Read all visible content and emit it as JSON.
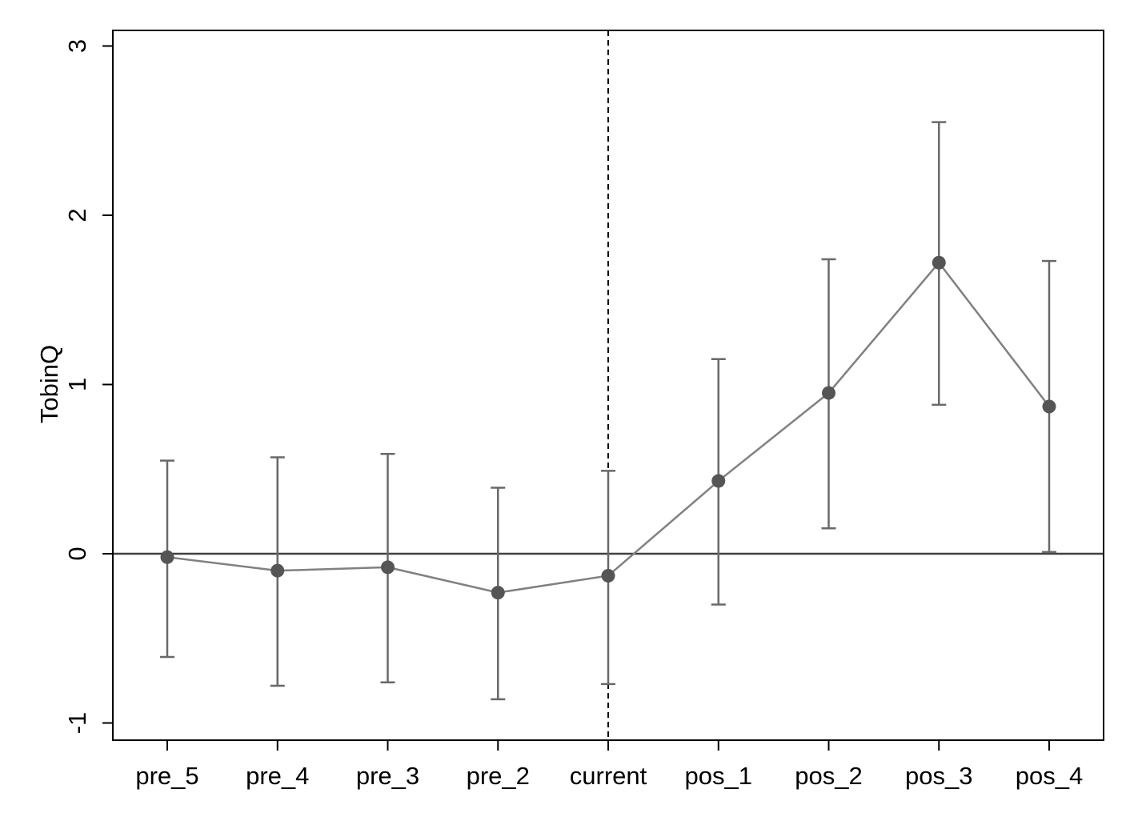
{
  "chart_data": {
    "type": "scatter",
    "xlabel": "",
    "ylabel": "TobinQ",
    "categories": [
      "pre_5",
      "pre_4",
      "pre_3",
      "pre_2",
      "current",
      "pos_1",
      "pos_2",
      "pos_3",
      "pos_4"
    ],
    "series": [
      {
        "values": [
          -0.02,
          -0.1,
          -0.08,
          -0.23,
          -0.13,
          0.43,
          0.95,
          1.72,
          0.87
        ],
        "ci_lower": [
          -0.61,
          -0.78,
          -0.76,
          -0.86,
          -0.77,
          -0.3,
          0.15,
          0.88,
          0.01
        ],
        "ci_upper": [
          0.55,
          0.57,
          0.59,
          0.39,
          0.49,
          1.15,
          1.74,
          2.55,
          1.73
        ]
      }
    ],
    "yticks": [
      -1,
      0,
      1,
      2,
      3
    ],
    "ylim": [
      -1.1,
      3.1
    ],
    "reference_lines": {
      "horizontal_y": 0,
      "vertical_dashed_at": "current"
    },
    "colors": {
      "marker": "#555555",
      "line": "#808080",
      "errorbar": "#696969",
      "zero_line": "#404040",
      "frame": "#000000"
    },
    "grid": false,
    "legend": "none"
  }
}
